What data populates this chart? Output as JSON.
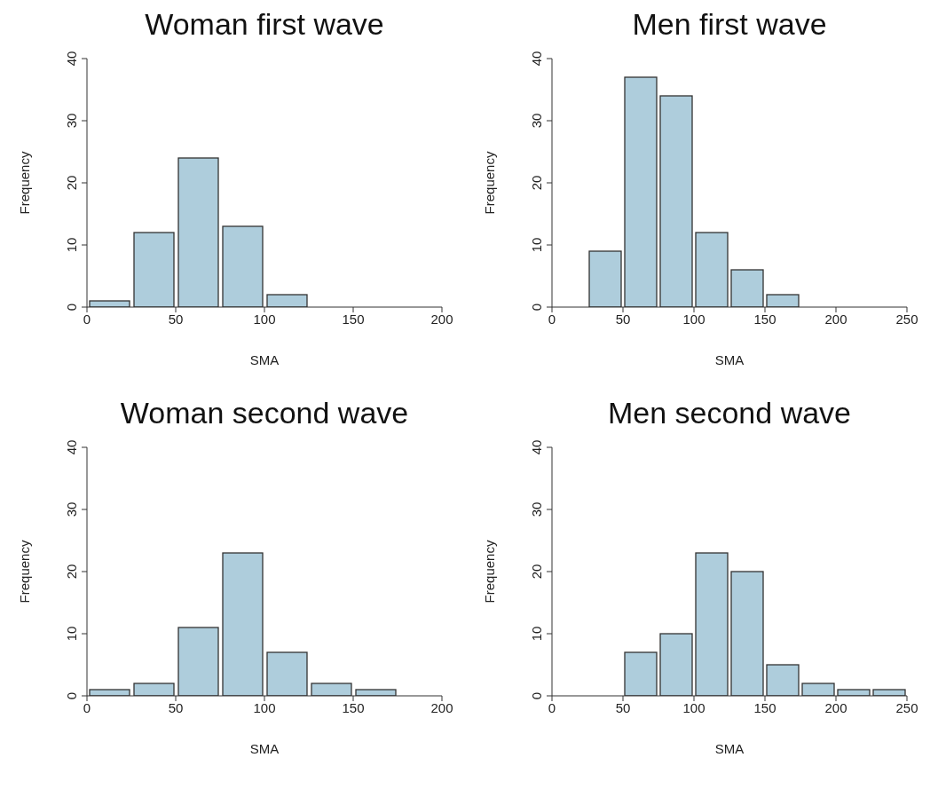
{
  "chart_data": [
    {
      "type": "histogram",
      "title": "Woman first wave",
      "xlabel": "SMA",
      "ylabel": "Frequency",
      "bins": [
        0,
        25,
        50,
        75,
        100,
        125,
        150,
        175,
        200
      ],
      "values": [
        1,
        12,
        24,
        13,
        2,
        0,
        0,
        0
      ],
      "color": "#aecddc",
      "xlim": [
        0,
        200
      ],
      "xticks": [
        0,
        50,
        100,
        150,
        200
      ],
      "ylim": [
        0,
        40
      ],
      "yticks": [
        0,
        10,
        20,
        30,
        40
      ]
    },
    {
      "type": "histogram",
      "title": "Men first wave",
      "xlabel": "SMA",
      "ylabel": "Frequency",
      "bins": [
        0,
        25,
        50,
        75,
        100,
        125,
        150,
        175,
        200,
        225,
        250
      ],
      "values": [
        0,
        9,
        37,
        34,
        12,
        6,
        2,
        0,
        0,
        0
      ],
      "color": "#aecddc",
      "xlim": [
        0,
        250
      ],
      "xticks": [
        0,
        50,
        100,
        150,
        200,
        250
      ],
      "ylim": [
        0,
        40
      ],
      "yticks": [
        0,
        10,
        20,
        30,
        40
      ]
    },
    {
      "type": "histogram",
      "title": "Woman second wave",
      "xlabel": "SMA",
      "ylabel": "Frequency",
      "bins": [
        0,
        25,
        50,
        75,
        100,
        125,
        150,
        175,
        200
      ],
      "values": [
        1,
        2,
        11,
        23,
        7,
        2,
        1,
        0
      ],
      "color": "#aecddc",
      "xlim": [
        0,
        200
      ],
      "xticks": [
        0,
        50,
        100,
        150,
        200
      ],
      "ylim": [
        0,
        40
      ],
      "yticks": [
        0,
        10,
        20,
        30,
        40
      ]
    },
    {
      "type": "histogram",
      "title": "Men second wave",
      "xlabel": "SMA",
      "ylabel": "Frequency",
      "bins": [
        0,
        25,
        50,
        75,
        100,
        125,
        150,
        175,
        200,
        225,
        250
      ],
      "values": [
        0,
        0,
        7,
        10,
        23,
        20,
        5,
        2,
        1,
        1
      ],
      "color": "#aecddc",
      "xlim": [
        0,
        250
      ],
      "xticks": [
        0,
        50,
        100,
        150,
        200,
        250
      ],
      "ylim": [
        0,
        40
      ],
      "yticks": [
        0,
        10,
        20,
        30,
        40
      ]
    }
  ]
}
